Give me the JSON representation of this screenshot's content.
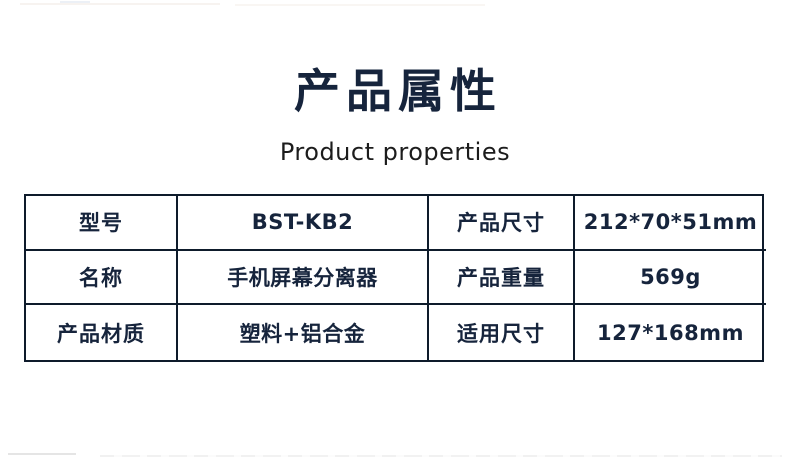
{
  "header": {
    "title": "产品属性",
    "subtitle": "Product properties"
  },
  "table": {
    "rows": [
      [
        "型号",
        "BST-KB2",
        "产品尺寸",
        "212*70*51mm"
      ],
      [
        "名称",
        "手机屏幕分离器",
        "产品重量",
        "569g"
      ],
      [
        "产品材质",
        "塑料+铝合金",
        "适用尺寸",
        "127*168mm"
      ]
    ]
  },
  "colors": {
    "accent_navy": "#16243c",
    "table_border": "#0e1b2b",
    "subtitle_text": "#1c1c1c",
    "background": "#ffffff"
  }
}
